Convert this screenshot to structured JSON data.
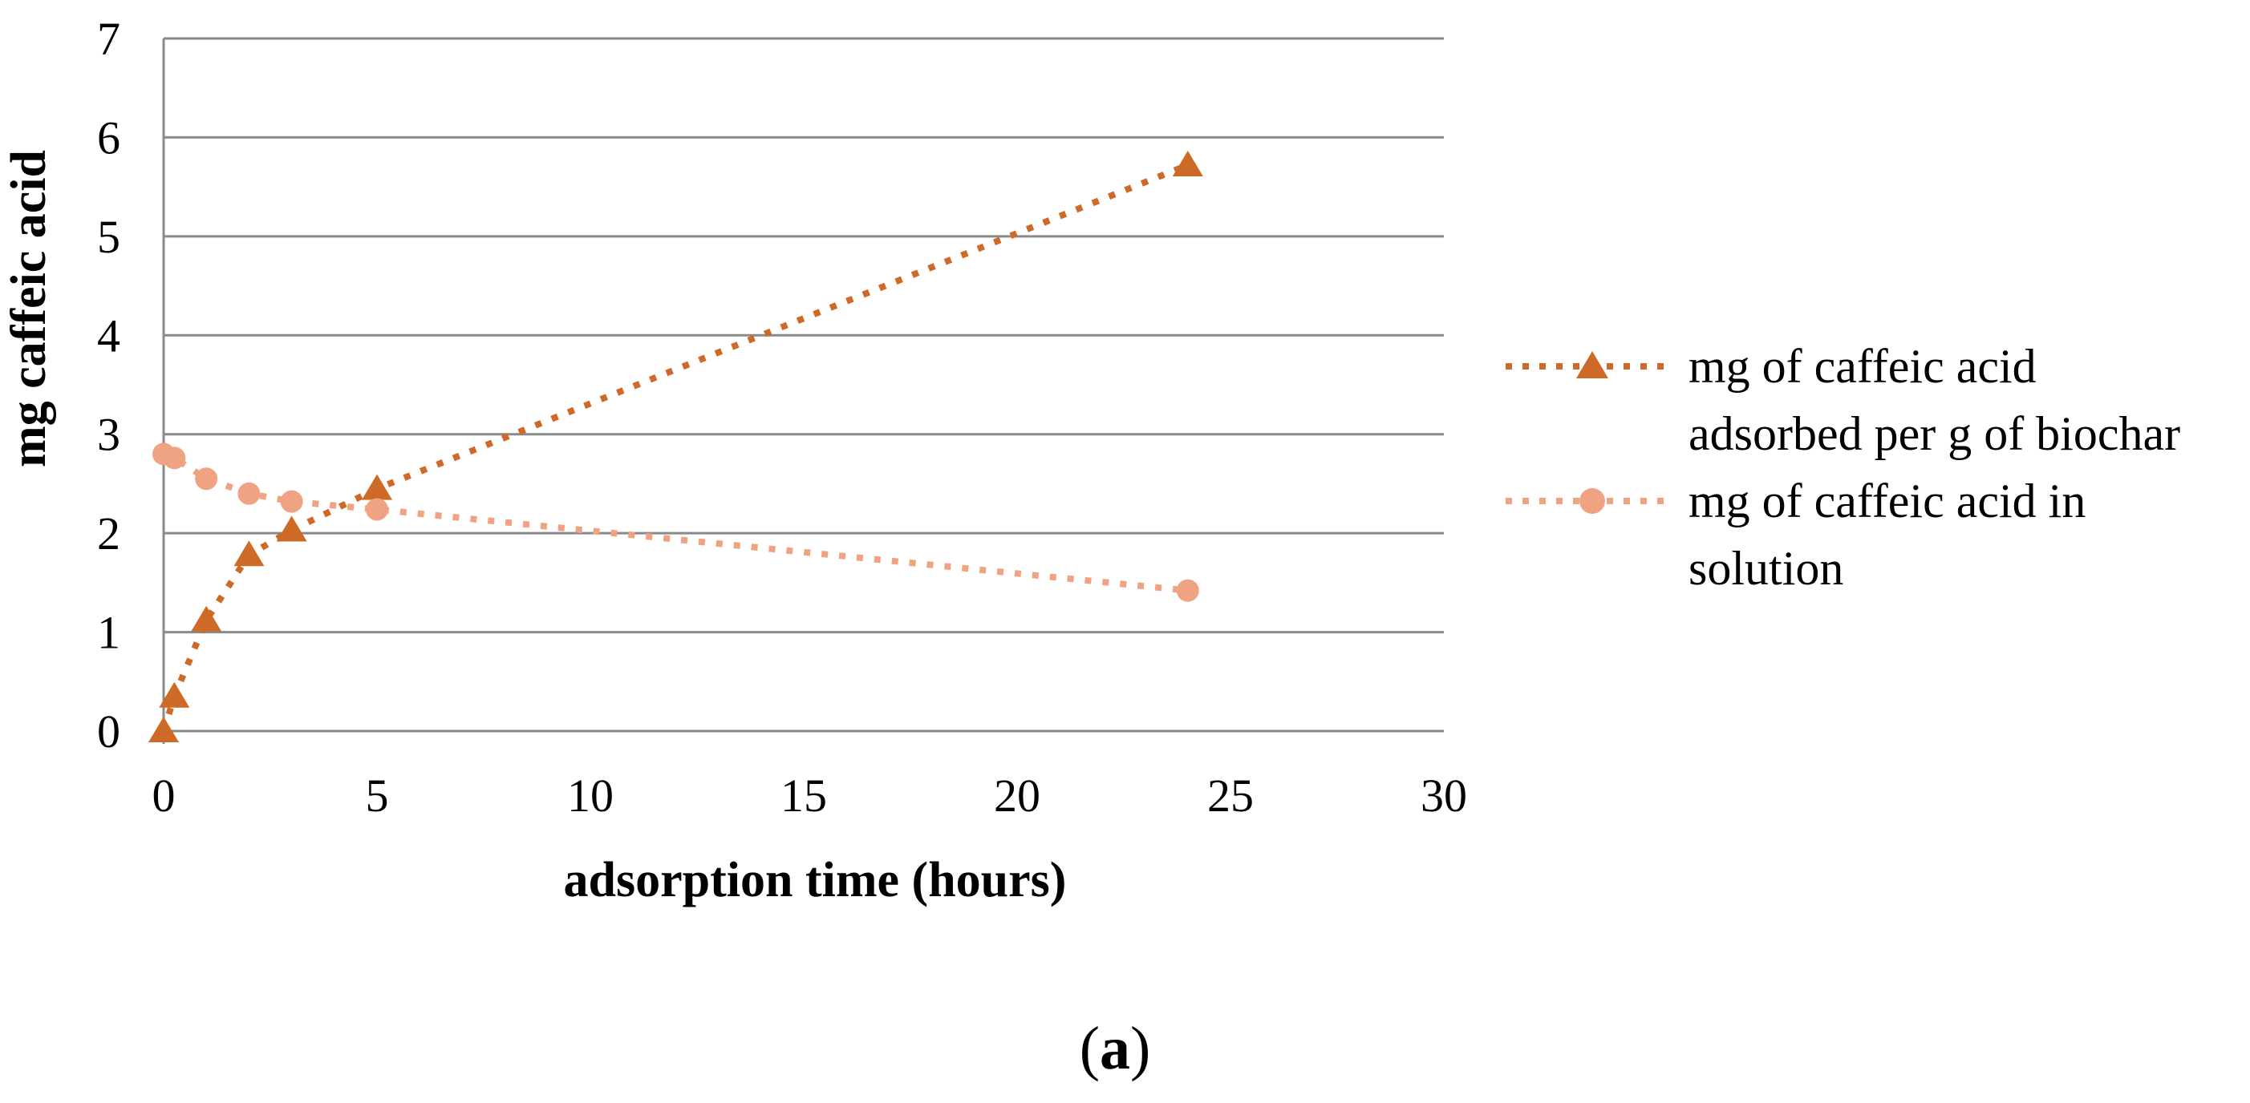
{
  "figure": {
    "caption": {
      "open": "(",
      "letter": "a",
      "close": ")"
    }
  },
  "axes": {
    "y_title": "mg caffeic acid",
    "x_title": "adsorption time (hours)"
  },
  "legend": {
    "entries": [
      {
        "lines": [
          "mg of caffeic acid",
          "adsorbed per g of biochar"
        ]
      },
      {
        "lines": [
          "mg of caffeic acid in",
          "solution"
        ]
      }
    ]
  },
  "colors": {
    "grid": "#8A8A8A",
    "axis": "#8A8A8A",
    "text": "#000000",
    "background": "#FFFFFF"
  },
  "chart_data": {
    "type": "scatter",
    "title": "",
    "xlabel": "adsorption time (hours)",
    "ylabel": "mg caffeic acid",
    "xlim": [
      0,
      30
    ],
    "ylim": [
      0,
      7
    ],
    "x_ticks": [
      0,
      5,
      10,
      15,
      20,
      25,
      30
    ],
    "y_ticks": [
      0,
      1,
      2,
      3,
      4,
      5,
      6,
      7
    ],
    "grid": "horizontal",
    "legend_position": "right",
    "line_style": "dotted",
    "series": [
      {
        "name": "mg of caffeic acid adsorbed per g of biochar",
        "marker": "triangle",
        "color": "#CE6A28",
        "points": [
          [
            0,
            0
          ],
          [
            0.25,
            0.35
          ],
          [
            1,
            1.12
          ],
          [
            2,
            1.78
          ],
          [
            3,
            2.03
          ],
          [
            5,
            2.45
          ],
          [
            24,
            5.72
          ]
        ]
      },
      {
        "name": "mg of caffeic acid in solution",
        "marker": "circle",
        "color": "#F0A383",
        "points": [
          [
            0,
            2.8
          ],
          [
            0.25,
            2.76
          ],
          [
            1,
            2.55
          ],
          [
            2,
            2.4
          ],
          [
            3,
            2.32
          ],
          [
            5,
            2.24
          ],
          [
            24,
            1.42
          ]
        ]
      }
    ]
  }
}
